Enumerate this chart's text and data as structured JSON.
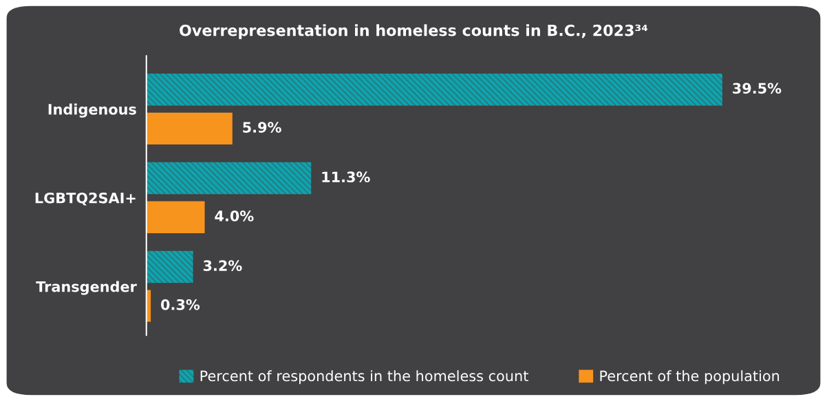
{
  "chart_data": {
    "type": "bar",
    "orientation": "horizontal",
    "title": "Overrepresentation in homeless counts in B.C., 2023³⁴",
    "categories": [
      "Indigenous",
      "LGBTQ2SAI+",
      "Transgender"
    ],
    "series": [
      {
        "name": "Percent of respondents in the homeless count",
        "color": "#0fa3ad",
        "values": [
          39.5,
          11.3,
          3.2
        ],
        "value_labels": [
          "39.5%",
          "11.3%",
          "3.2%"
        ]
      },
      {
        "name": "Percent of the population",
        "color": "#f7941d",
        "values": [
          5.9,
          4.0,
          0.3
        ],
        "value_labels": [
          "5.9%",
          "4.0%",
          "0.3%"
        ]
      }
    ],
    "legend": "bottom"
  }
}
